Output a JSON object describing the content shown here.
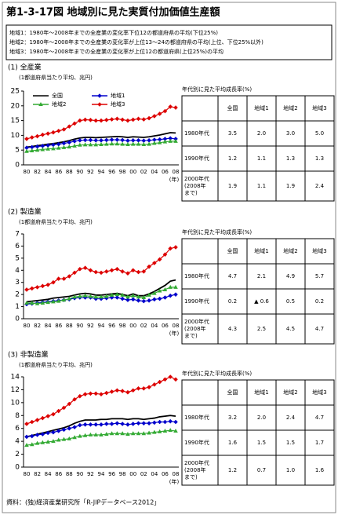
{
  "title": "第1-3-17図 地域別に見た実質付加価値生産額",
  "notes": [
    "地域1：1980年～2008年までの全産業の変化率下位12の都道府県の平均(下位25%)",
    "地域2：1980年～2008年までの全産業の変化率が上位13～24の都道府県の平均(上位、下位25%以外)",
    "地域3：1980年～2008年までの全産業の変化率が上位12の都道府県(上位25%)の平均"
  ],
  "chart_data": [
    {
      "type": "line",
      "title": "(1) 全産業",
      "subtitle": "(1都道府県当たり平均、兆円)",
      "xlabel": "(年)",
      "categories": [
        "80",
        null,
        "82",
        null,
        "84",
        null,
        "86",
        null,
        "88",
        null,
        "90",
        null,
        "92",
        null,
        "94",
        null,
        "96",
        null,
        "98",
        null,
        "00",
        null,
        "02",
        null,
        "04",
        null,
        "06",
        null,
        "08"
      ],
      "ylim": [
        0,
        25
      ],
      "yticks": [
        0,
        5,
        10,
        15,
        20,
        25
      ],
      "legend": true,
      "series": [
        {
          "name": "全国",
          "color": "#000000",
          "marker": "none",
          "values": [
            6.0,
            6.2,
            6.5,
            6.7,
            7.0,
            7.2,
            7.5,
            7.8,
            8.2,
            8.7,
            9.1,
            9.3,
            9.3,
            9.2,
            9.3,
            9.4,
            9.5,
            9.6,
            9.5,
            9.3,
            9.5,
            9.4,
            9.3,
            9.5,
            9.8,
            10.1,
            10.5,
            10.9,
            10.8
          ]
        },
        {
          "name": "地域1",
          "color": "#0000cc",
          "marker": "diamond",
          "values": [
            5.8,
            6.0,
            6.2,
            6.4,
            6.6,
            6.8,
            7.0,
            7.3,
            7.6,
            8.0,
            8.3,
            8.4,
            8.4,
            8.3,
            8.3,
            8.4,
            8.5,
            8.5,
            8.4,
            8.2,
            8.3,
            8.3,
            8.2,
            8.3,
            8.5,
            8.6,
            8.8,
            9.0,
            8.8
          ]
        },
        {
          "name": "地域2",
          "color": "#33aa33",
          "marker": "triangle",
          "values": [
            4.6,
            4.8,
            5.0,
            5.2,
            5.4,
            5.5,
            5.7,
            5.9,
            6.1,
            6.4,
            6.7,
            6.8,
            6.8,
            6.8,
            6.9,
            7.0,
            7.1,
            7.1,
            7.0,
            6.9,
            7.0,
            7.0,
            6.9,
            7.0,
            7.3,
            7.5,
            7.8,
            8.0,
            8.0
          ]
        },
        {
          "name": "地域3",
          "color": "#dd0000",
          "marker": "diamond",
          "values": [
            8.8,
            9.3,
            9.7,
            10.2,
            10.6,
            11.0,
            11.5,
            12.0,
            13.0,
            14.0,
            15.0,
            15.3,
            15.2,
            15.0,
            15.0,
            15.2,
            15.4,
            15.6,
            15.3,
            15.0,
            15.3,
            15.6,
            15.4,
            15.8,
            16.5,
            17.3,
            18.2,
            19.7,
            19.4
          ]
        }
      ]
    },
    {
      "type": "line",
      "title": "(2) 製造業",
      "subtitle": "(1都道府県当たり平均、兆円)",
      "xlabel": "(年)",
      "categories": [
        "80",
        null,
        "82",
        null,
        "84",
        null,
        "86",
        null,
        "88",
        null,
        "90",
        null,
        "92",
        null,
        "94",
        null,
        "96",
        null,
        "98",
        null,
        "00",
        null,
        "02",
        null,
        "04",
        null,
        "06",
        null,
        "08"
      ],
      "ylim": [
        0,
        7
      ],
      "yticks": [
        0,
        1,
        2,
        3,
        4,
        5,
        6,
        7
      ],
      "legend": false,
      "series": [
        {
          "color": "#000000",
          "marker": "none",
          "values": [
            1.4,
            1.45,
            1.5,
            1.55,
            1.6,
            1.7,
            1.75,
            1.8,
            1.85,
            1.95,
            2.05,
            2.1,
            2.05,
            1.95,
            1.95,
            2.0,
            2.05,
            2.1,
            2.0,
            1.9,
            2.05,
            1.9,
            1.9,
            2.05,
            2.25,
            2.5,
            2.75,
            3.1,
            3.2
          ]
        },
        {
          "color": "#0000cc",
          "marker": "diamond",
          "values": [
            1.2,
            1.25,
            1.3,
            1.35,
            1.4,
            1.45,
            1.5,
            1.55,
            1.6,
            1.7,
            1.75,
            1.75,
            1.75,
            1.65,
            1.65,
            1.7,
            1.75,
            1.75,
            1.65,
            1.55,
            1.6,
            1.5,
            1.45,
            1.5,
            1.6,
            1.65,
            1.75,
            1.9,
            2.0
          ]
        },
        {
          "color": "#33aa33",
          "marker": "triangle",
          "values": [
            1.3,
            1.3,
            1.25,
            1.3,
            1.35,
            1.4,
            1.45,
            1.55,
            1.65,
            1.8,
            1.85,
            1.9,
            1.85,
            1.8,
            1.8,
            1.85,
            1.95,
            2.0,
            1.95,
            1.8,
            1.9,
            1.8,
            1.75,
            1.95,
            2.1,
            2.3,
            2.4,
            2.6,
            2.6
          ]
        },
        {
          "color": "#dd0000",
          "marker": "diamond",
          "values": [
            2.4,
            2.5,
            2.6,
            2.7,
            2.8,
            3.0,
            3.3,
            3.3,
            3.5,
            3.8,
            4.1,
            4.2,
            4.0,
            3.85,
            3.8,
            3.9,
            4.0,
            4.1,
            3.9,
            3.75,
            4.0,
            3.85,
            3.9,
            4.3,
            4.6,
            4.9,
            5.3,
            5.8,
            5.9
          ]
        }
      ]
    },
    {
      "type": "line",
      "title": "(3) 非製造業",
      "subtitle": "(1都道府県当たり平均、兆円)",
      "xlabel": "(年)",
      "categories": [
        "80",
        null,
        "82",
        null,
        "84",
        null,
        "86",
        null,
        "88",
        null,
        "90",
        null,
        "92",
        null,
        "94",
        null,
        "96",
        null,
        "98",
        null,
        "00",
        null,
        "02",
        null,
        "04",
        null,
        "06",
        null,
        "08"
      ],
      "ylim": [
        0,
        14
      ],
      "yticks": [
        0,
        2,
        4,
        6,
        8,
        10,
        12,
        14
      ],
      "legend": false,
      "series": [
        {
          "color": "#000000",
          "marker": "none",
          "values": [
            4.7,
            4.9,
            5.1,
            5.3,
            5.5,
            5.7,
            5.9,
            6.1,
            6.4,
            6.8,
            7.1,
            7.3,
            7.3,
            7.3,
            7.4,
            7.4,
            7.5,
            7.5,
            7.5,
            7.4,
            7.5,
            7.5,
            7.4,
            7.5,
            7.6,
            7.8,
            7.9,
            8.0,
            7.9
          ]
        },
        {
          "color": "#0000cc",
          "marker": "diamond",
          "values": [
            4.7,
            4.8,
            5.0,
            5.1,
            5.3,
            5.4,
            5.6,
            5.8,
            6.0,
            6.2,
            6.5,
            6.6,
            6.6,
            6.6,
            6.6,
            6.7,
            6.7,
            6.8,
            6.7,
            6.6,
            6.7,
            6.8,
            6.8,
            6.8,
            6.9,
            7.0,
            7.0,
            7.1,
            7.0
          ]
        },
        {
          "color": "#33aa33",
          "marker": "triangle",
          "values": [
            3.4,
            3.5,
            3.7,
            3.8,
            3.9,
            4.0,
            4.2,
            4.3,
            4.4,
            4.6,
            4.8,
            4.9,
            5.0,
            5.0,
            5.0,
            5.1,
            5.2,
            5.2,
            5.2,
            5.1,
            5.2,
            5.2,
            5.2,
            5.3,
            5.4,
            5.5,
            5.6,
            5.7,
            5.6
          ]
        },
        {
          "color": "#dd0000",
          "marker": "diamond",
          "values": [
            6.7,
            7.0,
            7.3,
            7.6,
            7.9,
            8.2,
            8.7,
            9.2,
            9.8,
            10.5,
            11.0,
            11.3,
            11.4,
            11.4,
            11.3,
            11.5,
            11.7,
            11.9,
            11.8,
            11.6,
            11.9,
            12.2,
            12.2,
            12.4,
            12.8,
            13.2,
            13.6,
            14.0,
            13.6
          ]
        }
      ]
    }
  ],
  "tables": [
    {
      "caption": "年代別に見た平均成長率(%)",
      "header": [
        "全国",
        "地域1",
        "地域2",
        "地域3"
      ],
      "rows": [
        [
          "1980年代",
          "3.5",
          "2.0",
          "3.0",
          "5.0"
        ],
        [
          "1990年代",
          "1.2",
          "1.1",
          "1.3",
          "1.3"
        ],
        [
          "2000年代\n(2008年\nまで)",
          "1.9",
          "1.1",
          "1.9",
          "2.4"
        ]
      ]
    },
    {
      "caption": "年代別に見た平均成長率(%)",
      "header": [
        "全国",
        "地域1",
        "地域2",
        "地域3"
      ],
      "rows": [
        [
          "1980年代",
          "4.7",
          "2.1",
          "4.9",
          "5.7"
        ],
        [
          "1990年代",
          "0.2",
          "▲ 0.6",
          "0.5",
          "0.2"
        ],
        [
          "2000年代\n(2008年\nまで)",
          "4.3",
          "2.5",
          "4.5",
          "4.7"
        ]
      ]
    },
    {
      "caption": "年代別に見た平均成長率(%)",
      "header": [
        "全国",
        "地域1",
        "地域2",
        "地域3"
      ],
      "rows": [
        [
          "1980年代",
          "3.2",
          "2.0",
          "2.4",
          "4.7"
        ],
        [
          "1990年代",
          "1.6",
          "1.5",
          "1.5",
          "1.7"
        ],
        [
          "2000年代\n(2008年\nまで)",
          "1.2",
          "0.7",
          "1.0",
          "1.6"
        ]
      ]
    }
  ],
  "source": "資料：(独)経済産業研究所「R-JIPデータベース2012」"
}
